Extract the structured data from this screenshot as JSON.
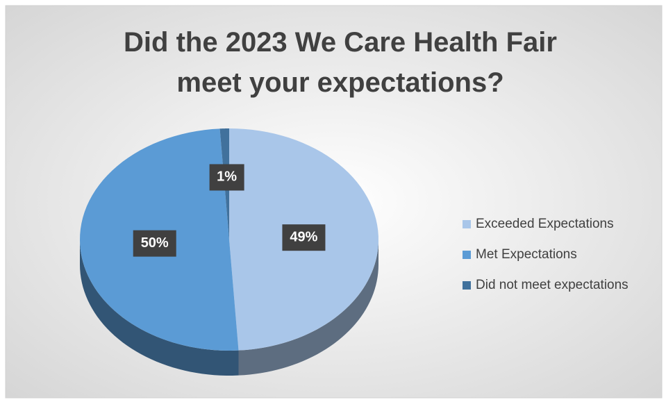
{
  "chart_data": {
    "type": "pie",
    "title": "Did the 2023 We Care Health Fair meet your expectations?",
    "categories": [
      "Exceeded Expectations",
      "Met Expectations",
      "Did not meet expectations"
    ],
    "values": [
      49,
      50,
      1
    ],
    "value_labels": [
      "49%",
      "50%",
      "1%"
    ],
    "colors": [
      "#a9c6e9",
      "#5b9bd5",
      "#41719c"
    ],
    "legend": "right"
  }
}
